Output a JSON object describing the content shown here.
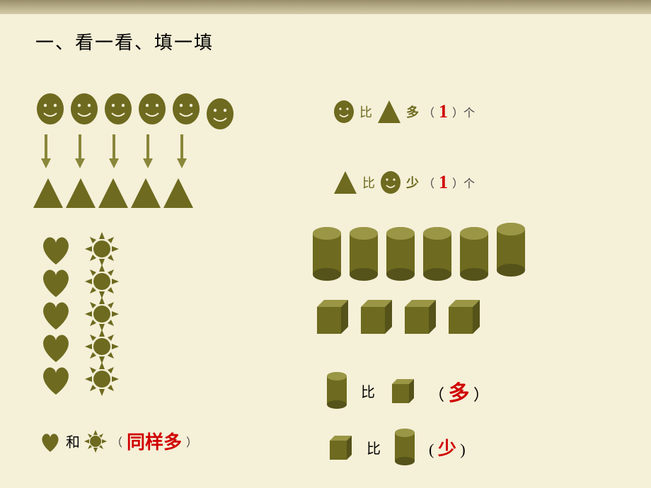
{
  "colors": {
    "olive": "#6e6a1f",
    "olive_light": "#8a863a",
    "olive_dark": "#55521a",
    "red": "#d00000",
    "bg": "#f5f0d8"
  },
  "title": "一、看一看、填一填",
  "smiley_row": {
    "count": 6,
    "extra_offset_last": 14,
    "size": 42
  },
  "arrow_row": {
    "count": 5
  },
  "triangle_row": {
    "count": 5,
    "size": 46
  },
  "stmt1": {
    "smiley_icon": true,
    "word1": "比",
    "tri_icon": true,
    "word2": "多",
    "open": "（",
    "answer": "1",
    "close": "）个"
  },
  "stmt2": {
    "tri_icon": true,
    "word1": "比",
    "smiley_icon": true,
    "word2": "少",
    "open": "（",
    "answer": "1",
    "close": "）个"
  },
  "hearts": {
    "count": 5,
    "size": 48
  },
  "suns": {
    "count": 5,
    "size": 48
  },
  "stmt3": {
    "heart_icon": true,
    "word1": "和",
    "sun_icon": true,
    "open": "（",
    "answer": "同样多",
    "close": "）"
  },
  "cylinders": {
    "count": 6,
    "w": 44,
    "h": 78
  },
  "cubes": {
    "count": 4,
    "size": 52
  },
  "stmt4": {
    "cyl_icon": true,
    "word1": "比",
    "cube_icon": true,
    "open": "（",
    "answer": "多",
    "close": "）"
  },
  "stmt5": {
    "cube_icon": true,
    "word1": "比",
    "cyl_icon": true,
    "open": "(",
    "answer": "少",
    "close": ")"
  }
}
